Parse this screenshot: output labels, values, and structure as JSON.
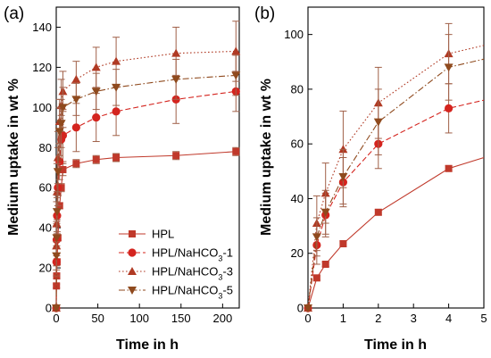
{
  "colors": {
    "HPL": "#c0392b",
    "HPL/NaHCO3-1": "#d4241e",
    "HPL/NaHCO3-3": "#b03a24",
    "HPL/NaHCO3-5": "#8f4a1e",
    "errorbar": "#a06048"
  },
  "chart_data": [
    {
      "type": "line",
      "panel_label": "(a)",
      "xlabel": "Time in h",
      "ylabel": "Medium uptake in wt %",
      "xlim": [
        0,
        220
      ],
      "ylim": [
        0,
        150
      ],
      "xticks": [
        0,
        50,
        100,
        150,
        200
      ],
      "yticks": [
        0,
        20,
        40,
        60,
        80,
        100,
        120,
        140
      ],
      "legend_position": "bottom-right",
      "series": [
        {
          "name": "HPL",
          "marker": "square",
          "linestyle": "solid",
          "x": [
            0,
            0.25,
            0.5,
            1,
            2,
            4,
            6,
            8,
            24,
            48,
            72,
            144,
            216
          ],
          "y": [
            0,
            11,
            16,
            23,
            35,
            51,
            60,
            69,
            72,
            74,
            75,
            76,
            78
          ],
          "err": [
            0,
            1,
            1,
            1.5,
            1.5,
            1.5,
            2,
            3,
            2,
            2,
            2,
            2,
            2
          ]
        },
        {
          "name": "HPL/NaHCO3-1",
          "marker": "circle",
          "linestyle": "dashed",
          "x": [
            0,
            0.25,
            0.5,
            1,
            2,
            4,
            6,
            8,
            24,
            48,
            72,
            144,
            216
          ],
          "y": [
            0,
            23,
            34,
            46,
            60,
            73,
            84,
            86,
            90,
            95,
            98,
            104,
            108
          ],
          "err": [
            0,
            7,
            8,
            9,
            9,
            9,
            12,
            13,
            12,
            12,
            12,
            12,
            10
          ]
        },
        {
          "name": "HPL/NaHCO3-3",
          "marker": "triangle-up",
          "linestyle": "dotted",
          "x": [
            0,
            0.25,
            0.5,
            1,
            2,
            4,
            6,
            8,
            24,
            48,
            72,
            144,
            216
          ],
          "y": [
            0,
            31,
            42,
            58,
            75,
            93,
            101,
            108,
            114,
            120,
            123,
            127,
            128
          ],
          "err": [
            0,
            10,
            11,
            14,
            13,
            11,
            13,
            10,
            9,
            10,
            12,
            13,
            15
          ]
        },
        {
          "name": "HPL/NaHCO3-5",
          "marker": "triangle-down",
          "linestyle": "dashdot",
          "x": [
            0,
            0.25,
            0.5,
            1,
            2,
            4,
            6,
            8,
            24,
            48,
            72,
            144,
            216
          ],
          "y": [
            0,
            26,
            35,
            48,
            68,
            88,
            92,
            100,
            104,
            108,
            110,
            114,
            116
          ],
          "err": [
            0,
            7,
            8,
            10,
            12,
            12,
            12,
            10,
            8,
            9,
            9,
            10,
            10
          ]
        }
      ]
    },
    {
      "type": "line",
      "panel_label": "(b)",
      "xlabel": "Time in h",
      "ylabel": "Medium uptake in wt %",
      "xlim": [
        0,
        5
      ],
      "ylim": [
        0,
        110
      ],
      "xticks": [
        0,
        1,
        2,
        3,
        4,
        5
      ],
      "yticks": [
        0,
        20,
        40,
        60,
        80,
        100
      ],
      "series": [
        {
          "name": "HPL",
          "marker": "square",
          "linestyle": "solid",
          "x": [
            0,
            0.25,
            0.5,
            1,
            2,
            4
          ],
          "y": [
            0,
            11,
            16,
            23.5,
            35,
            51
          ],
          "err": [
            0,
            0.8,
            0.8,
            1,
            1,
            1
          ],
          "tail": [
            5,
            55
          ]
        },
        {
          "name": "HPL/NaHCO3-1",
          "marker": "circle",
          "linestyle": "dashed",
          "x": [
            0,
            0.25,
            0.5,
            1,
            2,
            4
          ],
          "y": [
            0,
            23,
            34,
            46,
            60,
            73
          ],
          "err": [
            0,
            7,
            8,
            9,
            9,
            9
          ],
          "tail": [
            5,
            76
          ]
        },
        {
          "name": "HPL/NaHCO3-3",
          "marker": "triangle-up",
          "linestyle": "dotted",
          "x": [
            0,
            0.25,
            0.5,
            1,
            2,
            4
          ],
          "y": [
            0,
            31,
            42,
            58,
            75,
            93
          ],
          "err": [
            0,
            10,
            11,
            14,
            13,
            11
          ],
          "tail": [
            5,
            96
          ]
        },
        {
          "name": "HPL/NaHCO3-5",
          "marker": "triangle-down",
          "linestyle": "dashdot",
          "x": [
            0,
            0.25,
            0.5,
            1,
            2,
            4
          ],
          "y": [
            0,
            26,
            35,
            48,
            68,
            88
          ],
          "err": [
            0,
            7,
            8,
            10,
            12,
            12
          ],
          "tail": [
            5,
            91
          ]
        }
      ]
    }
  ]
}
